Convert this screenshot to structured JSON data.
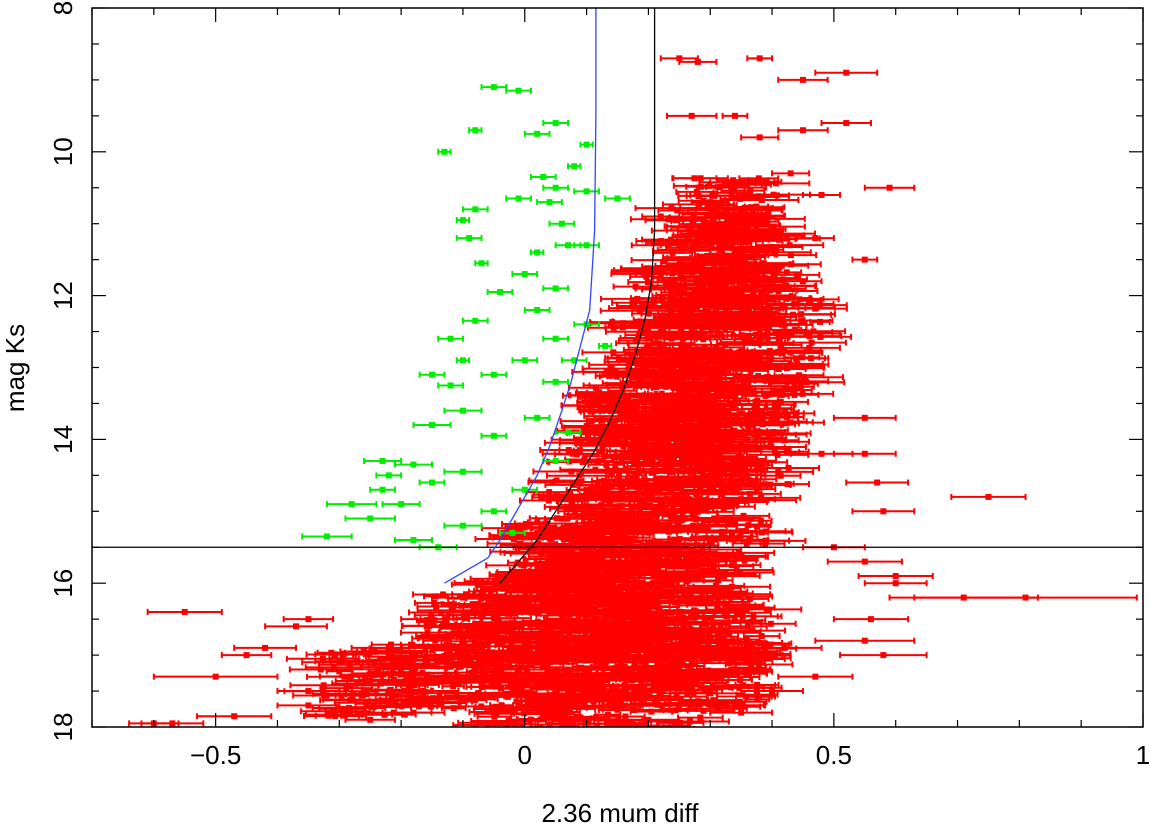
{
  "chart_data": {
    "type": "scatter",
    "title": "",
    "xlabel": "2.36 mum diff",
    "ylabel": "mag Ks",
    "xlim": [
      -0.7,
      1.0
    ],
    "ylim": [
      18,
      8
    ],
    "y_inverted": true,
    "grid": false,
    "legend": "none",
    "x_ticks": [
      {
        "value": -0.5,
        "label": "−0.5"
      },
      {
        "value": 0,
        "label": "0"
      },
      {
        "value": 0.5,
        "label": "0.5"
      },
      {
        "value": 1,
        "label": "1"
      }
    ],
    "y_ticks": [
      {
        "value": 8,
        "label": "8"
      },
      {
        "value": 10,
        "label": "10"
      },
      {
        "value": 12,
        "label": "12"
      },
      {
        "value": 14,
        "label": "14"
      },
      {
        "value": 16,
        "label": "16"
      },
      {
        "value": 18,
        "label": "18"
      }
    ],
    "reference_lines": [
      {
        "name": "magnitude-cut",
        "orientation": "horizontal",
        "y": 15.5,
        "color": "#000000"
      }
    ],
    "curves": [
      {
        "name": "blue-boundary-curve",
        "color": "#3344ff",
        "points": [
          [
            0.115,
            8.0
          ],
          [
            0.115,
            9.5
          ],
          [
            0.113,
            11.1
          ],
          [
            0.105,
            12.2
          ],
          [
            0.09,
            12.7
          ],
          [
            0.075,
            13.2
          ],
          [
            0.06,
            13.6
          ],
          [
            0.04,
            14.1
          ],
          [
            0.02,
            14.5
          ],
          [
            0.0,
            14.8
          ],
          [
            -0.02,
            15.1
          ],
          [
            -0.04,
            15.4
          ],
          [
            -0.06,
            15.65
          ],
          [
            -0.09,
            15.8
          ],
          [
            -0.13,
            16.0
          ]
        ]
      },
      {
        "name": "black-boundary-curve",
        "color": "#000000",
        "points": [
          [
            0.21,
            8.0
          ],
          [
            0.21,
            9.5
          ],
          [
            0.21,
            11.1
          ],
          [
            0.205,
            11.8
          ],
          [
            0.195,
            12.3
          ],
          [
            0.18,
            12.8
          ],
          [
            0.16,
            13.3
          ],
          [
            0.135,
            13.8
          ],
          [
            0.11,
            14.2
          ],
          [
            0.08,
            14.6
          ],
          [
            0.05,
            15.0
          ],
          [
            0.02,
            15.4
          ],
          [
            -0.01,
            15.7
          ],
          [
            -0.04,
            16.0
          ]
        ]
      }
    ],
    "series": [
      {
        "name": "red",
        "color": "#ff0000",
        "points": [
          [
            0.25,
            8.7,
            0.03
          ],
          [
            0.38,
            8.7,
            0.02
          ],
          [
            0.52,
            8.9,
            0.05
          ],
          [
            0.45,
            9.0,
            0.04
          ],
          [
            0.28,
            8.75,
            0.03
          ],
          [
            0.27,
            9.5,
            0.04
          ],
          [
            0.34,
            9.5,
            0.02
          ],
          [
            0.38,
            9.8,
            0.03
          ],
          [
            0.45,
            9.7,
            0.04
          ],
          [
            0.52,
            9.6,
            0.04
          ],
          [
            0.59,
            10.5,
            0.04
          ],
          [
            0.55,
            11.5,
            0.02
          ],
          [
            0.47,
            11.2,
            0.03
          ],
          [
            0.43,
            10.3,
            0.03
          ],
          [
            0.48,
            10.6,
            0.03
          ],
          [
            0.22,
            10.9,
            0.03
          ],
          [
            0.25,
            11.3,
            0.03
          ],
          [
            0.3,
            10.7,
            0.03
          ],
          [
            0.22,
            11.7,
            0.03
          ],
          [
            0.45,
            11.8,
            0.03
          ],
          [
            0.75,
            14.8,
            0.06
          ],
          [
            0.81,
            16.2,
            0.18
          ],
          [
            0.71,
            16.2,
            0.12
          ],
          [
            0.55,
            14.2,
            0.05
          ],
          [
            0.55,
            13.7,
            0.05
          ],
          [
            0.57,
            14.6,
            0.05
          ],
          [
            0.48,
            14.2,
            0.05
          ],
          [
            0.58,
            15.0,
            0.05
          ],
          [
            0.55,
            15.7,
            0.06
          ],
          [
            0.6,
            16.0,
            0.05
          ],
          [
            0.56,
            16.5,
            0.06
          ],
          [
            0.55,
            16.8,
            0.08
          ],
          [
            0.58,
            17.0,
            0.07
          ],
          [
            0.47,
            17.3,
            0.06
          ],
          [
            0.42,
            16.9,
            0.06
          ],
          [
            -0.55,
            16.4,
            0.06
          ],
          [
            -0.42,
            16.9,
            0.05
          ],
          [
            -0.45,
            17.0,
            0.04
          ],
          [
            -0.5,
            17.3,
            0.1
          ],
          [
            -0.35,
            16.5,
            0.04
          ],
          [
            -0.33,
            17.2,
            0.05
          ],
          [
            -0.35,
            17.5,
            0.05
          ],
          [
            -0.35,
            17.7,
            0.05
          ],
          [
            -0.25,
            17.9,
            0.04
          ],
          [
            -0.57,
            17.95,
            0.05
          ],
          [
            -0.47,
            17.85,
            0.06
          ],
          [
            -0.6,
            17.95,
            0.04
          ],
          [
            -0.37,
            16.6,
            0.05
          ],
          [
            -0.3,
            17.1,
            0.06
          ],
          [
            -0.22,
            16.9,
            0.06
          ],
          [
            -0.15,
            16.5,
            0.05
          ],
          [
            -0.1,
            16.2,
            0.05
          ],
          [
            -0.18,
            17.8,
            0.05
          ],
          [
            0.2,
            17.9,
            0.05
          ],
          [
            0.35,
            17.8,
            0.05
          ],
          [
            0.4,
            17.5,
            0.05
          ],
          [
            0.15,
            17.2,
            0.05
          ],
          [
            0.3,
            16.8,
            0.05
          ],
          [
            0.5,
            15.5,
            0.05
          ],
          [
            0.6,
            15.9,
            0.06
          ]
        ],
        "density_cloud": {
          "description": "dense overlapping red points with error bars",
          "points": [
            [
              0.0,
              16.2
            ],
            [
              0.05,
              15.6
            ],
            [
              0.1,
              15.0
            ],
            [
              0.15,
              14.4
            ],
            [
              0.2,
              13.8
            ],
            [
              0.25,
              13.2
            ],
            [
              0.3,
              12.6
            ],
            [
              0.32,
              12.0
            ],
            [
              0.3,
              11.2
            ],
            [
              0.34,
              10.8
            ],
            [
              0.2,
              16.5
            ],
            [
              0.28,
              15.8
            ],
            [
              0.32,
              15.0
            ],
            [
              0.35,
              14.2
            ],
            [
              0.38,
              13.4
            ],
            [
              0.4,
              12.5
            ],
            [
              0.36,
              11.6
            ],
            [
              0.25,
              12.0
            ],
            [
              0.22,
              12.8
            ],
            [
              0.18,
              13.5
            ],
            [
              -0.05,
              17.0
            ],
            [
              0.05,
              17.2
            ],
            [
              0.15,
              17.0
            ],
            [
              0.25,
              16.9
            ],
            [
              0.32,
              16.6
            ],
            [
              0.1,
              16.6
            ],
            [
              -0.08,
              16.6
            ],
            [
              0.12,
              16.0
            ],
            [
              0.2,
              15.3
            ],
            [
              0.27,
              14.6
            ],
            [
              -0.15,
              17.3
            ],
            [
              -0.25,
              17.4
            ],
            [
              0.0,
              17.6
            ],
            [
              0.1,
              17.7
            ],
            [
              0.22,
              17.6
            ],
            [
              0.3,
              17.3
            ],
            [
              0.08,
              15.8
            ],
            [
              0.17,
              15.6
            ],
            [
              0.24,
              14.0
            ],
            [
              0.31,
              13.7
            ]
          ]
        }
      },
      {
        "name": "green",
        "color": "#00ee00",
        "points": [
          [
            -0.05,
            9.1,
            0.02
          ],
          [
            -0.01,
            9.15,
            0.02
          ],
          [
            -0.08,
            9.7,
            0.01
          ],
          [
            0.02,
            9.75,
            0.02
          ],
          [
            0.05,
            9.6,
            0.02
          ],
          [
            -0.13,
            10.0,
            0.01
          ],
          [
            0.1,
            9.9,
            0.01
          ],
          [
            0.03,
            10.35,
            0.02
          ],
          [
            0.05,
            10.5,
            0.02
          ],
          [
            0.08,
            10.2,
            0.01
          ],
          [
            -0.01,
            10.65,
            0.02
          ],
          [
            0.04,
            10.7,
            0.02
          ],
          [
            -0.08,
            10.8,
            0.02
          ],
          [
            0.1,
            10.55,
            0.02
          ],
          [
            0.15,
            10.65,
            0.02
          ],
          [
            -0.1,
            10.95,
            0.01
          ],
          [
            -0.09,
            11.2,
            0.02
          ],
          [
            0.06,
            11.0,
            0.02
          ],
          [
            0.07,
            11.3,
            0.02
          ],
          [
            0.1,
            11.3,
            0.02
          ],
          [
            0.02,
            11.4,
            0.01
          ],
          [
            0.0,
            11.7,
            0.02
          ],
          [
            -0.07,
            11.55,
            0.01
          ],
          [
            0.05,
            11.9,
            0.02
          ],
          [
            -0.04,
            11.95,
            0.02
          ],
          [
            -0.08,
            12.35,
            0.02
          ],
          [
            0.02,
            12.2,
            0.02
          ],
          [
            0.05,
            12.6,
            0.02
          ],
          [
            -0.12,
            12.6,
            0.02
          ],
          [
            0.0,
            12.9,
            0.02
          ],
          [
            -0.1,
            12.9,
            0.01
          ],
          [
            -0.15,
            13.1,
            0.02
          ],
          [
            -0.12,
            13.25,
            0.02
          ],
          [
            -0.05,
            13.1,
            0.02
          ],
          [
            0.05,
            13.2,
            0.02
          ],
          [
            -0.1,
            13.6,
            0.03
          ],
          [
            -0.15,
            13.8,
            0.03
          ],
          [
            0.02,
            13.7,
            0.02
          ],
          [
            -0.05,
            13.95,
            0.02
          ],
          [
            0.07,
            13.9,
            0.02
          ],
          [
            -0.23,
            14.3,
            0.03
          ],
          [
            -0.18,
            14.35,
            0.03
          ],
          [
            -0.22,
            14.5,
            0.02
          ],
          [
            -0.1,
            14.45,
            0.03
          ],
          [
            -0.15,
            14.6,
            0.02
          ],
          [
            -0.23,
            14.7,
            0.02
          ],
          [
            -0.28,
            14.9,
            0.04
          ],
          [
            -0.2,
            14.9,
            0.03
          ],
          [
            -0.25,
            15.1,
            0.04
          ],
          [
            -0.32,
            15.35,
            0.04
          ],
          [
            -0.18,
            15.4,
            0.03
          ],
          [
            -0.1,
            15.2,
            0.03
          ],
          [
            -0.05,
            15.0,
            0.02
          ],
          [
            -0.14,
            15.5,
            0.03
          ],
          [
            0.0,
            14.7,
            0.02
          ],
          [
            0.1,
            12.4,
            0.02
          ],
          [
            0.08,
            12.9,
            0.02
          ],
          [
            0.13,
            12.7,
            0.01
          ],
          [
            0.05,
            14.3,
            0.02
          ],
          [
            -0.02,
            15.3,
            0.02
          ]
        ]
      }
    ]
  }
}
